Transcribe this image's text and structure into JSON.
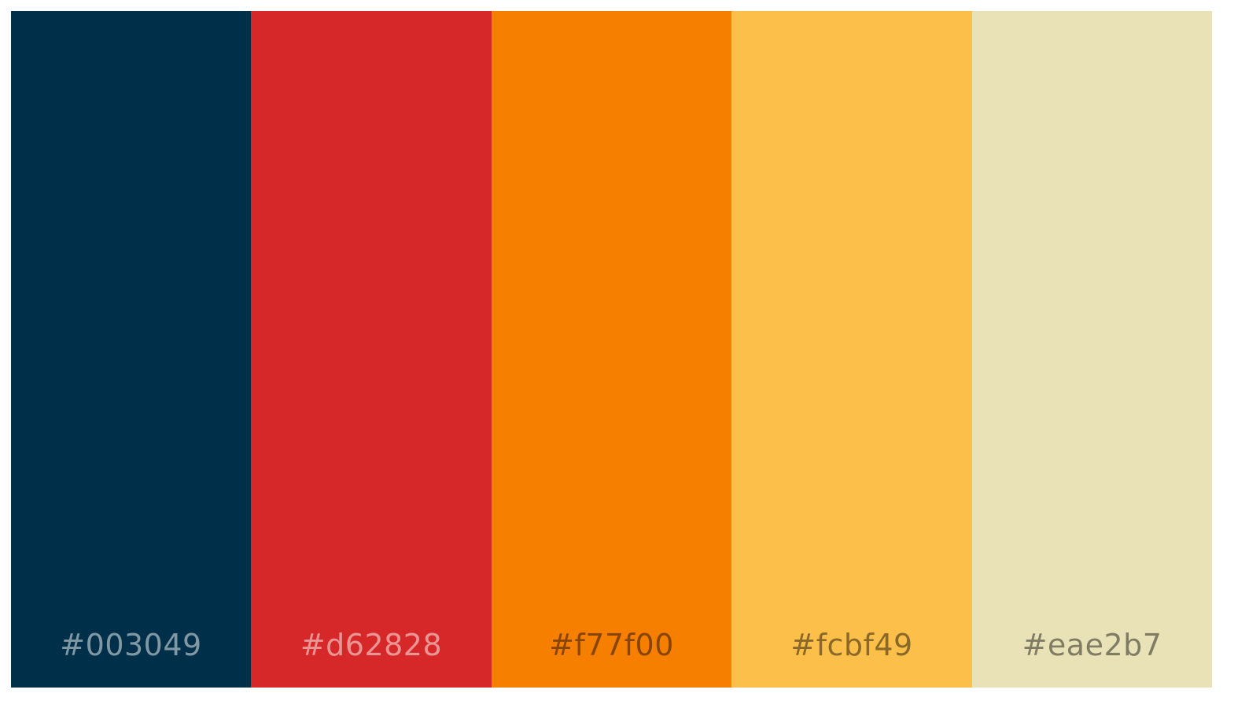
{
  "palette": {
    "swatches": [
      {
        "color": "#003049",
        "label": "#003049",
        "icon": "color-swatch"
      },
      {
        "color": "#d62828",
        "label": "#d62828",
        "icon": "color-swatch"
      },
      {
        "color": "#f77f00",
        "label": "#f77f00",
        "icon": "color-swatch"
      },
      {
        "color": "#fcbf49",
        "label": "#fcbf49",
        "icon": "color-swatch"
      },
      {
        "color": "#eae2b7",
        "label": "#eae2b7",
        "icon": "color-swatch"
      }
    ]
  }
}
